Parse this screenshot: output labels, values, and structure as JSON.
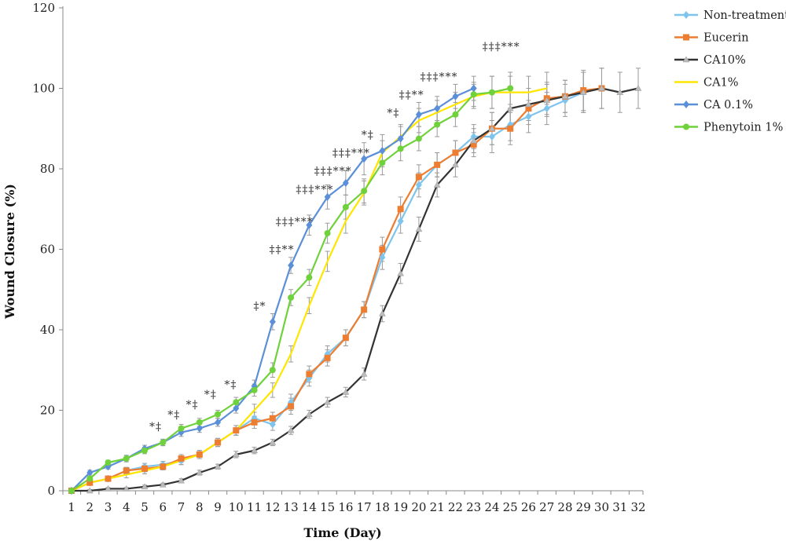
{
  "chart_data": {
    "type": "line",
    "title": "",
    "xlabel": "Time (Day)",
    "ylabel": "Wound Closure (%)",
    "ylim": [
      0,
      120
    ],
    "yticks": [
      0,
      20,
      40,
      60,
      80,
      100,
      120
    ],
    "x": [
      1,
      2,
      3,
      4,
      5,
      6,
      7,
      8,
      9,
      10,
      11,
      12,
      13,
      14,
      15,
      16,
      17,
      18,
      19,
      20,
      21,
      22,
      23,
      24,
      25,
      26,
      27,
      28,
      29,
      30,
      31,
      32
    ],
    "grid": false,
    "legend_position": "top-right",
    "series": [
      {
        "name": "Non-treatment",
        "color": "#7fc4ec",
        "marker": "diamond",
        "x": [
          1,
          2,
          3,
          4,
          5,
          6,
          7,
          8,
          9,
          10,
          11,
          12,
          13,
          14,
          15,
          16,
          17,
          18,
          19,
          20,
          21,
          22,
          23,
          24,
          25,
          26,
          27,
          28,
          29,
          30
        ],
        "values": [
          0,
          2,
          3,
          5,
          6,
          6.5,
          7.5,
          9,
          12,
          15,
          18,
          16.5,
          22,
          28,
          34,
          38,
          45,
          58,
          67,
          76,
          81,
          84,
          88,
          88,
          91,
          93,
          95,
          97,
          99,
          100
        ],
        "errors": [
          0.5,
          0.5,
          0.6,
          0.8,
          0.8,
          0.8,
          1,
          1,
          1,
          1.2,
          1.5,
          1.5,
          2,
          2,
          2,
          2,
          2,
          3,
          3,
          3,
          3,
          3,
          3,
          4,
          4,
          4,
          4,
          4,
          5,
          5
        ]
      },
      {
        "name": "Eucerin",
        "color": "#ed7d31",
        "marker": "square",
        "x": [
          1,
          2,
          3,
          4,
          5,
          6,
          7,
          8,
          9,
          10,
          11,
          12,
          13,
          14,
          15,
          16,
          17,
          18,
          19,
          20,
          21,
          22,
          23,
          24,
          25,
          26,
          27,
          28,
          29,
          30
        ],
        "values": [
          0,
          2,
          3,
          5,
          5.5,
          6,
          8,
          9,
          12,
          15,
          17,
          18,
          21,
          29,
          33,
          38,
          45,
          60,
          70,
          78,
          81,
          84,
          86,
          90,
          90,
          95,
          97.5,
          98,
          99.5,
          100
        ],
        "errors": [
          0.5,
          0.5,
          0.6,
          0.8,
          0.8,
          0.8,
          1,
          1,
          1,
          1.2,
          1.5,
          1.5,
          2,
          2,
          2,
          2,
          2,
          3,
          3,
          3,
          3,
          3,
          3,
          4,
          4,
          4,
          4,
          4,
          5,
          5
        ]
      },
      {
        "name": "CA10%",
        "color": "#333333",
        "marker": "triangle",
        "x": [
          1,
          2,
          3,
          4,
          5,
          6,
          7,
          8,
          9,
          10,
          11,
          12,
          13,
          14,
          15,
          16,
          17,
          18,
          19,
          20,
          21,
          22,
          23,
          24,
          25,
          26,
          27,
          28,
          29,
          30,
          31,
          32
        ],
        "values": [
          0,
          0,
          0.5,
          0.5,
          1,
          1.5,
          2.5,
          4.5,
          6,
          9,
          10,
          12,
          15,
          19,
          22,
          24.5,
          29,
          44,
          54,
          65,
          76,
          81,
          87,
          90,
          95,
          96,
          97,
          98,
          99,
          100,
          99,
          100
        ],
        "errors": [
          0.3,
          0.3,
          0.3,
          0.3,
          0.4,
          0.4,
          0.5,
          0.6,
          0.6,
          0.8,
          0.8,
          0.8,
          1,
          1,
          1.2,
          1.2,
          1.5,
          2,
          2.5,
          3,
          3,
          3,
          3,
          4,
          4,
          4,
          4,
          4,
          5,
          5,
          5,
          5
        ]
      },
      {
        "name": "CA1%",
        "color": "#ffe600",
        "marker": "none",
        "x": [
          1,
          2,
          3,
          4,
          5,
          6,
          7,
          8,
          9,
          10,
          11,
          12,
          13,
          14,
          15,
          16,
          17,
          18,
          19,
          20,
          21,
          22,
          23,
          24,
          25,
          26,
          27
        ],
        "values": [
          0,
          2,
          3,
          4,
          5,
          6,
          7.5,
          9,
          12,
          15,
          20,
          25,
          34,
          46,
          57,
          67,
          74,
          84,
          88,
          92,
          94,
          96,
          98,
          99,
          99,
          99,
          100
        ],
        "errors": [
          0.5,
          0.5,
          0.6,
          0.8,
          0.8,
          0.8,
          1,
          1,
          1,
          1.2,
          1.5,
          1.8,
          2,
          2,
          2.5,
          3,
          3,
          3,
          3,
          3,
          3,
          3,
          3,
          4,
          4,
          4,
          4
        ]
      },
      {
        "name": "CA 0.1%",
        "color": "#5b8fd8",
        "marker": "diamond",
        "x": [
          1,
          2,
          3,
          4,
          5,
          6,
          7,
          8,
          9,
          10,
          11,
          12,
          13,
          14,
          15,
          16,
          17,
          18,
          19,
          20,
          21,
          22,
          23
        ],
        "values": [
          0,
          4.5,
          6,
          8,
          10.5,
          12,
          14.5,
          15.5,
          17,
          20.5,
          26,
          42,
          56,
          66,
          73,
          76.5,
          82.5,
          84.5,
          87.5,
          93.5,
          95,
          98,
          100
        ],
        "errors": [
          0.5,
          0.6,
          0.6,
          0.8,
          0.8,
          0.8,
          1,
          1,
          1,
          1.2,
          1.5,
          2,
          2,
          2.5,
          3,
          3,
          4,
          4,
          3,
          3,
          3,
          3,
          3
        ]
      },
      {
        "name": "Phenytoin 1%",
        "color": "#6fd13b",
        "marker": "circle",
        "x": [
          1,
          2,
          3,
          4,
          5,
          6,
          7,
          8,
          9,
          10,
          11,
          12,
          13,
          14,
          15,
          16,
          17,
          18,
          19,
          20,
          21,
          22,
          23,
          24,
          25
        ],
        "values": [
          0,
          3,
          7,
          8,
          10,
          12,
          15.5,
          17,
          19,
          22,
          25,
          30,
          48,
          53,
          64,
          70.5,
          74.5,
          81.5,
          85,
          87.5,
          91,
          93.5,
          98.5,
          99,
          100
        ],
        "errors": [
          0.5,
          0.6,
          0.6,
          0.8,
          0.8,
          0.8,
          1,
          1,
          1,
          1.2,
          1.5,
          1.8,
          2,
          2,
          2.5,
          3,
          3,
          3,
          3,
          3,
          3,
          3,
          3,
          4,
          4
        ]
      }
    ],
    "annotations": [
      {
        "x": 5.6,
        "y": 15,
        "text": "*‡"
      },
      {
        "x": 6.6,
        "y": 18,
        "text": "*‡"
      },
      {
        "x": 7.6,
        "y": 20.5,
        "text": "*‡"
      },
      {
        "x": 8.6,
        "y": 23,
        "text": "*‡"
      },
      {
        "x": 9.7,
        "y": 25.5,
        "text": "*‡"
      },
      {
        "x": 11.3,
        "y": 45,
        "text": "‡*"
      },
      {
        "x": 12.5,
        "y": 59,
        "text": "‡‡**"
      },
      {
        "x": 13.2,
        "y": 66,
        "text": "‡‡‡***"
      },
      {
        "x": 14.3,
        "y": 74,
        "text": "‡‡‡***"
      },
      {
        "x": 15.3,
        "y": 78.5,
        "text": "‡‡‡***"
      },
      {
        "x": 16.3,
        "y": 83,
        "text": "‡‡‡***"
      },
      {
        "x": 17.2,
        "y": 87.5,
        "text": "*‡"
      },
      {
        "x": 18.6,
        "y": 93,
        "text": "*‡"
      },
      {
        "x": 19.6,
        "y": 97.5,
        "text": "‡‡**"
      },
      {
        "x": 21.1,
        "y": 102,
        "text": "‡‡‡***"
      },
      {
        "x": 24.5,
        "y": 109.5,
        "text": "‡‡‡***"
      }
    ]
  }
}
